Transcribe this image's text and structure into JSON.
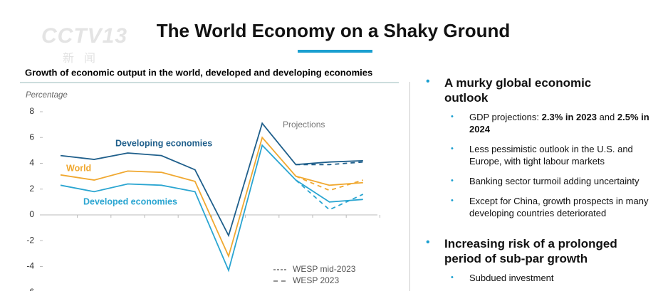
{
  "header": {
    "logo": "CCTV13",
    "logo_sub": "新闻",
    "title": "The World Economy on a Shaky Ground"
  },
  "chart_data": {
    "type": "line",
    "title": "Growth of economic output in the world, developed and developing economies",
    "y_label": "Percentage",
    "annotation": "Projections",
    "categories": [
      null,
      null,
      null,
      null,
      null,
      null,
      null,
      null,
      null,
      null
    ],
    "ylim": [
      -6,
      8
    ],
    "yticks": [
      -6,
      -4,
      -2,
      0,
      2,
      4,
      6,
      8
    ],
    "series": [
      {
        "name": "Developing economies",
        "color": "#1f5f8b",
        "values": [
          4.6,
          4.3,
          4.8,
          4.6,
          3.5,
          -1.6,
          7.1,
          3.9,
          4.1,
          4.2
        ],
        "values_wesp_2023": [
          null,
          null,
          null,
          null,
          null,
          null,
          null,
          3.9,
          3.9,
          4.1
        ]
      },
      {
        "name": "World",
        "color": "#f0a830",
        "values": [
          3.1,
          2.7,
          3.4,
          3.3,
          2.6,
          -3.2,
          6.0,
          3.0,
          2.3,
          2.5
        ],
        "values_wesp_2023": [
          null,
          null,
          null,
          null,
          null,
          null,
          null,
          3.0,
          1.9,
          2.7
        ]
      },
      {
        "name": "Developed economies",
        "color": "#2aa5d1",
        "values": [
          2.3,
          1.8,
          2.4,
          2.3,
          1.8,
          -4.3,
          5.4,
          2.7,
          1.0,
          1.2
        ],
        "values_wesp_2023": [
          null,
          null,
          null,
          null,
          null,
          null,
          null,
          2.7,
          0.4,
          1.6
        ]
      }
    ],
    "legend": [
      "WESP mid-2023",
      "WESP 2023"
    ]
  },
  "bullets": [
    {
      "heading": "A murky global economic outlook",
      "items": [
        [
          {
            "text": "GDP projections: "
          },
          {
            "text": "2.3% in 2023",
            "bold": true
          },
          {
            "text": " and "
          },
          {
            "text": "2.5% in 2024",
            "bold": true
          }
        ],
        [
          {
            "text": "Less pessimistic outlook in the U.S. and Europe, with tight labour markets"
          }
        ],
        [
          {
            "text": "Banking sector turmoil adding uncertainty"
          }
        ],
        [
          {
            "text": "Except for China, growth prospects in many developing countries deteriorated"
          }
        ]
      ]
    },
    {
      "heading": "Increasing risk of a prolonged period of sub-par growth",
      "items": [
        [
          {
            "text": "Subdued investment"
          }
        ]
      ]
    }
  ]
}
